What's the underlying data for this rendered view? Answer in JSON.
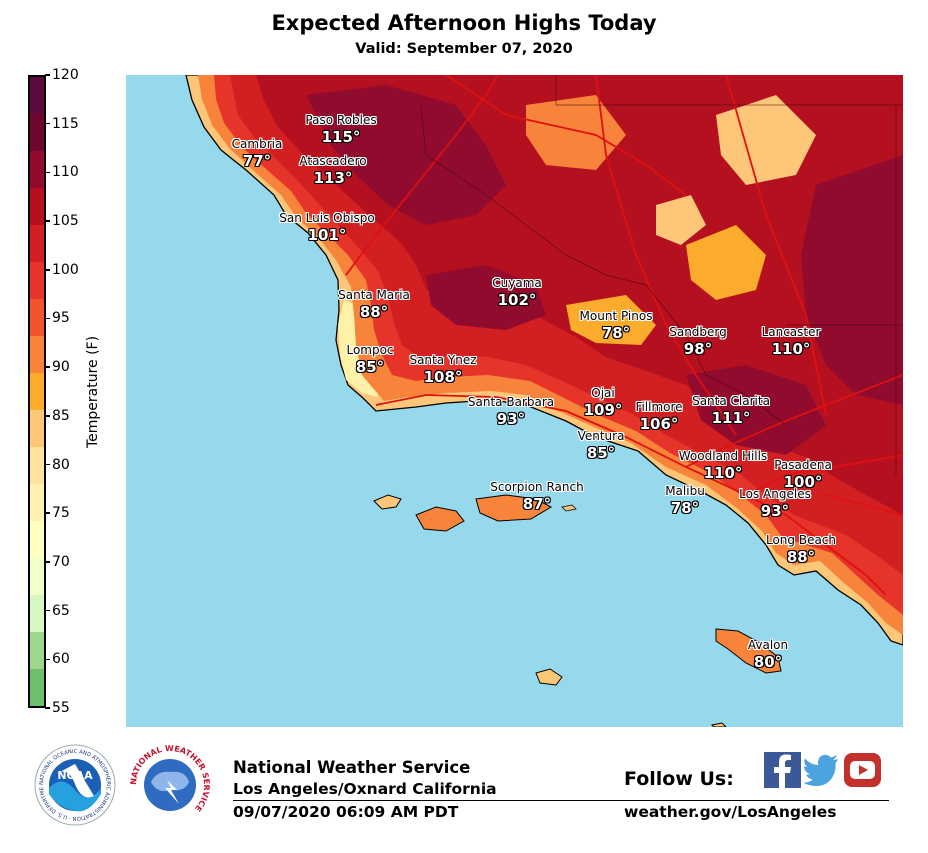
{
  "header": {
    "title": "Expected Afternoon Highs Today",
    "subtitle": "Valid: September 07, 2020"
  },
  "colorbar": {
    "label": "Temperature (F)",
    "ticks": [
      "120",
      "115",
      "110",
      "105",
      "100",
      "95",
      "90",
      "85",
      "80",
      "75",
      "70",
      "65",
      "60",
      "55"
    ],
    "colors": [
      "#5c0a3c",
      "#6e0630",
      "#900b2e",
      "#b5101f",
      "#d21f22",
      "#e7342a",
      "#f2542d",
      "#f7843a",
      "#fcac2c",
      "#fdc678",
      "#ffe39b",
      "#fff2b0",
      "#ffffbf",
      "#f2ffc6",
      "#d7f7c2",
      "#9ed68d",
      "#6cbf6d"
    ]
  },
  "map": {
    "colors": {
      "ocean": "#96d8ec",
      "coast_cool": "#fff1a8",
      "coast_warm": "#fdc678",
      "orange": "#f7843a",
      "red_orange": "#e7342a",
      "red": "#d21f22",
      "deep_red": "#b5101f",
      "maroon": "#900b2e",
      "highway": "#e01010"
    },
    "cities": [
      {
        "name": "Paso Robles",
        "temp": "115°"
      },
      {
        "name": "Cambria",
        "temp": "77°"
      },
      {
        "name": "Atascadero",
        "temp": "113°"
      },
      {
        "name": "San Luis Obispo",
        "temp": "101°"
      },
      {
        "name": "Cuyama",
        "temp": "102°"
      },
      {
        "name": "Santa Maria",
        "temp": "88°"
      },
      {
        "name": "Mount Pinos",
        "temp": "78°"
      },
      {
        "name": "Sandberg",
        "temp": "98°"
      },
      {
        "name": "Lancaster",
        "temp": "110°"
      },
      {
        "name": "Lompoc",
        "temp": "85°"
      },
      {
        "name": "Santa Ynez",
        "temp": "108°"
      },
      {
        "name": "Ojai",
        "temp": "109°"
      },
      {
        "name": "Fillmore",
        "temp": "106°"
      },
      {
        "name": "Santa Clarita",
        "temp": "111°"
      },
      {
        "name": "Santa Barbara",
        "temp": "93°"
      },
      {
        "name": "Ventura",
        "temp": "85°"
      },
      {
        "name": "Woodland Hills",
        "temp": "110°"
      },
      {
        "name": "Pasadena",
        "temp": "100°"
      },
      {
        "name": "Scorpion Ranch",
        "temp": "87°"
      },
      {
        "name": "Malibu",
        "temp": "78°"
      },
      {
        "name": "Los Angeles",
        "temp": "93°"
      },
      {
        "name": "Long Beach",
        "temp": "88°"
      },
      {
        "name": "Avalon",
        "temp": "80°"
      }
    ]
  },
  "footer": {
    "organization": "National Weather Service",
    "office": "Los Angeles/Oxnard California",
    "issued": "09/07/2020 06:09 AM PDT",
    "follow": "Follow Us:",
    "url": "weather.gov/LosAngeles",
    "noaa_text": "NOAA",
    "noaa_ring_text": "NATIONAL OCEANIC AND ATMOSPHERIC ADMINISTRATION · U.S. DEPARTMENT OF COMMERCE",
    "nws_ring_text": "NATIONAL WEATHER SERVICE",
    "social": [
      "facebook-icon",
      "twitter-icon",
      "youtube-icon"
    ]
  }
}
